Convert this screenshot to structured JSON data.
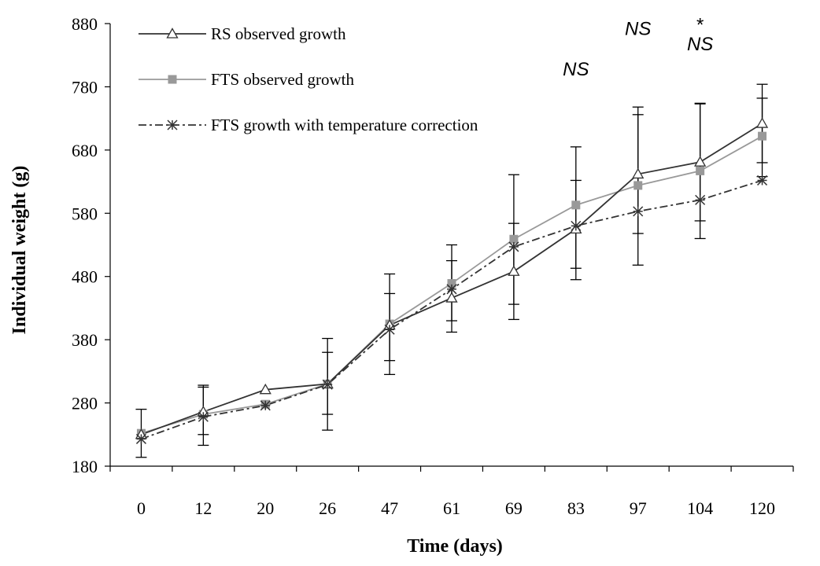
{
  "chart_data": {
    "type": "line",
    "xlabel": "Time (days)",
    "ylabel": "Individual weight (g)",
    "categories": [
      "0",
      "12",
      "20",
      "26",
      "47",
      "61",
      "69",
      "83",
      "97",
      "104",
      "120"
    ],
    "ylim": [
      180,
      880
    ],
    "yticks": [
      180,
      280,
      380,
      480,
      580,
      680,
      780,
      880
    ],
    "grid": false,
    "legend_position": "top-left",
    "series": [
      {
        "name": "RS observed growth",
        "marker": "open-triangle",
        "line": "solid",
        "color": "#333333",
        "values": [
          230,
          266,
          301,
          310,
          403,
          446,
          488,
          555,
          642,
          661,
          722
        ],
        "err_low": [
          null,
          230,
          null,
          237,
          347,
          410,
          412,
          475,
          498,
          540,
          660
        ],
        "err_high": [
          null,
          305,
          null,
          382,
          484,
          530,
          641,
          685,
          748,
          753,
          784
        ]
      },
      {
        "name": "FTS observed growth",
        "marker": "filled-square",
        "line": "solid",
        "color": "#999999",
        "values": [
          232,
          262,
          278,
          310,
          405,
          469,
          539,
          593,
          624,
          647,
          702
        ],
        "err_low": [
          194,
          213,
          null,
          262,
          325,
          392,
          436,
          493,
          548,
          568,
          638
        ],
        "err_high": [
          270,
          308,
          null,
          360,
          453,
          505,
          564,
          632,
          736,
          754,
          762
        ]
      },
      {
        "name": "FTS growth with temperature correction",
        "marker": "star",
        "line": "dash-dot",
        "color": "#333333",
        "values": [
          223,
          258,
          276,
          309,
          396,
          460,
          527,
          560,
          583,
          601,
          632
        ],
        "err_low": [
          null,
          null,
          null,
          null,
          null,
          null,
          null,
          null,
          null,
          null,
          null
        ],
        "err_high": [
          null,
          null,
          null,
          null,
          null,
          null,
          null,
          null,
          null,
          null,
          null
        ]
      }
    ],
    "annotations": [
      {
        "text": "NS",
        "x_category": "83",
        "y": 798,
        "style": "italic"
      },
      {
        "text": "NS",
        "x_category": "97",
        "y": 862,
        "style": "italic"
      },
      {
        "text": "*",
        "x_category": "104",
        "y": 868,
        "style": "normal"
      },
      {
        "text": "NS",
        "x_category": "104",
        "y": 838,
        "style": "italic"
      }
    ]
  }
}
